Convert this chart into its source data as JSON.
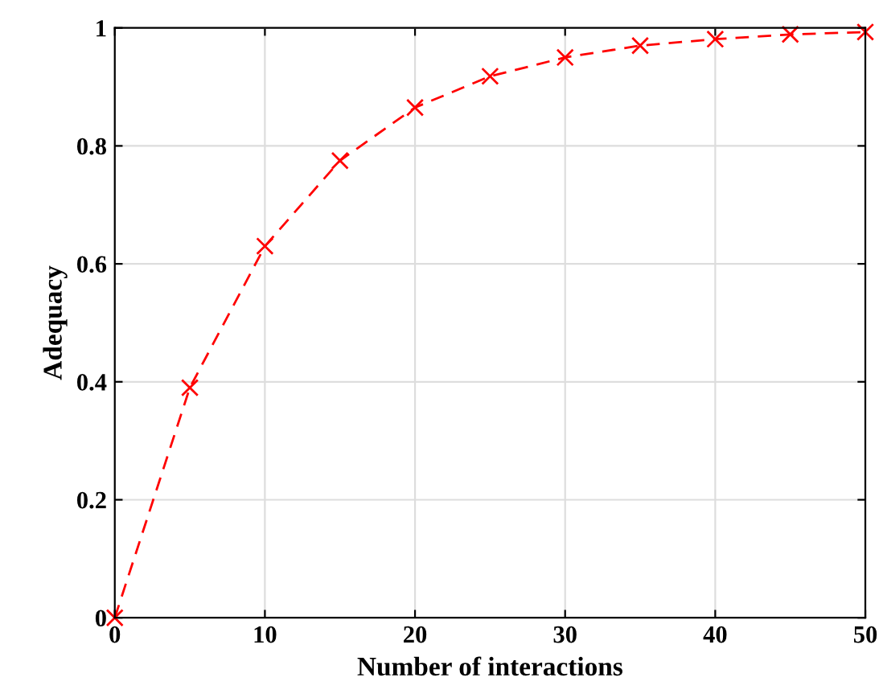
{
  "chart_data": {
    "type": "line",
    "xlabel": "Number of interactions",
    "ylabel": "Adequacy",
    "x": [
      0,
      5,
      10,
      15,
      20,
      25,
      30,
      35,
      40,
      45,
      50
    ],
    "series": [
      {
        "color": "#ff0000",
        "values": [
          0,
          0.39,
          0.63,
          0.775,
          0.865,
          0.918,
          0.95,
          0.97,
          0.981,
          0.989,
          0.993
        ]
      }
    ],
    "xlim": [
      0,
      50
    ],
    "xticks": [
      0,
      10,
      20,
      30,
      40,
      50
    ],
    "ylim": [
      0,
      1
    ],
    "yticks": [
      0,
      0.2,
      0.4,
      0.6,
      0.8,
      1
    ],
    "grid": true,
    "marker": "cross",
    "line_style": "dashed"
  }
}
